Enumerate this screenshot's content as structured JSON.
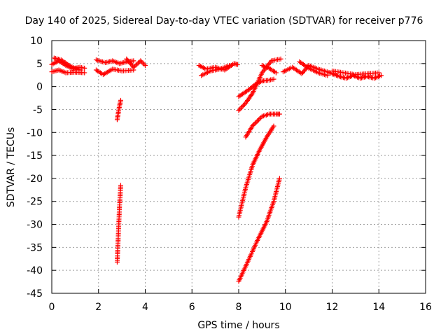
{
  "chart_data": {
    "type": "scatter",
    "title": "Day 140 of 2025, Sidereal Day-to-day VTEC variation (SDTVAR) for receiver p776",
    "xlabel": "GPS time / hours",
    "ylabel": "SDTVAR / TECUs",
    "xlim": [
      0,
      16
    ],
    "ylim": [
      -45,
      10
    ],
    "xticks": [
      "0",
      "2",
      "4",
      "6",
      "8",
      "10",
      "12",
      "14",
      "16"
    ],
    "yticks": [
      "10",
      "5",
      "0",
      "-5",
      "-10",
      "-15",
      "-20",
      "-25",
      "-30",
      "-35",
      "-40",
      "-45"
    ],
    "grid": true,
    "marker": "plus",
    "series_color": "#ff0000",
    "segments": [
      {
        "x": [
          0.0,
          0.3,
          0.6,
          0.9,
          1.2,
          1.4
        ],
        "y": [
          4.8,
          5.6,
          4.6,
          3.9,
          4.2,
          4.0
        ]
      },
      {
        "x": [
          0.0,
          0.3,
          0.6,
          1.0,
          1.4
        ],
        "y": [
          3.2,
          3.6,
          3.0,
          3.1,
          3.0
        ]
      },
      {
        "x": [
          0.1,
          0.4,
          0.8,
          1.2
        ],
        "y": [
          6.2,
          5.8,
          4.4,
          3.6
        ]
      },
      {
        "x": [
          1.9,
          2.3,
          2.6,
          2.9,
          3.2,
          3.5
        ],
        "y": [
          5.8,
          5.2,
          5.6,
          5.0,
          5.4,
          5.6
        ]
      },
      {
        "x": [
          1.9,
          2.2,
          2.6,
          3.0,
          3.5
        ],
        "y": [
          3.6,
          2.6,
          3.8,
          3.4,
          3.6
        ]
      },
      {
        "x": [
          3.2,
          3.5,
          3.8,
          4.0
        ],
        "y": [
          6.0,
          4.2,
          5.6,
          4.6
        ]
      },
      {
        "x": [
          2.8,
          2.85,
          2.9,
          2.95
        ],
        "y": [
          -7.2,
          -5.6,
          -4.2,
          -3.0
        ]
      },
      {
        "x": [
          2.8,
          2.85,
          2.9,
          2.95
        ],
        "y": [
          -38.2,
          -32.0,
          -26.0,
          -21.5
        ]
      },
      {
        "x": [
          6.3,
          6.6,
          7.0,
          7.4,
          7.8,
          7.95
        ],
        "y": [
          4.6,
          3.8,
          4.2,
          3.6,
          5.0,
          4.8
        ]
      },
      {
        "x": [
          6.4,
          6.8,
          7.2,
          7.6
        ],
        "y": [
          2.4,
          3.4,
          3.8,
          4.6
        ]
      },
      {
        "x": [
          8.0,
          8.4,
          8.7,
          9.0,
          9.3,
          9.5
        ],
        "y": [
          -2.2,
          -0.8,
          0.4,
          1.2,
          1.4,
          1.6
        ]
      },
      {
        "x": [
          8.0,
          8.3,
          8.6,
          9.0,
          9.4,
          9.8
        ],
        "y": [
          -5.2,
          -3.6,
          -1.4,
          3.0,
          5.6,
          6.0
        ]
      },
      {
        "x": [
          9.0,
          9.3,
          9.6
        ],
        "y": [
          4.6,
          4.0,
          3.0
        ]
      },
      {
        "x": [
          8.3,
          8.6,
          9.0,
          9.3,
          9.6,
          9.75
        ],
        "y": [
          -11.0,
          -8.5,
          -6.5,
          -6.0,
          -6.0,
          -6.0
        ]
      },
      {
        "x": [
          8.0,
          8.3,
          8.6,
          8.9,
          9.2,
          9.5
        ],
        "y": [
          -28.4,
          -22.0,
          -17.0,
          -13.8,
          -11.0,
          -8.6
        ]
      },
      {
        "x": [
          8.0,
          8.4,
          8.8,
          9.2,
          9.5,
          9.75
        ],
        "y": [
          -42.4,
          -38.0,
          -33.5,
          -29.4,
          -25.0,
          -20.0
        ]
      },
      {
        "x": [
          9.9,
          10.3,
          10.7,
          11.0,
          11.4,
          11.8,
          12.0
        ],
        "y": [
          3.2,
          4.2,
          2.8,
          4.6,
          3.8,
          3.2,
          2.8
        ]
      },
      {
        "x": [
          10.6,
          11.0,
          11.4,
          11.8
        ],
        "y": [
          5.4,
          4.0,
          3.0,
          2.4
        ]
      },
      {
        "x": [
          12.0,
          12.3,
          12.6,
          12.9,
          13.2,
          13.5,
          13.8,
          14.1
        ],
        "y": [
          2.8,
          2.2,
          1.8,
          2.4,
          1.8,
          2.2,
          1.8,
          2.4
        ]
      },
      {
        "x": [
          12.0,
          12.5,
          13.0,
          13.5,
          14.0
        ],
        "y": [
          3.4,
          3.0,
          2.6,
          2.8,
          3.0
        ]
      }
    ]
  }
}
